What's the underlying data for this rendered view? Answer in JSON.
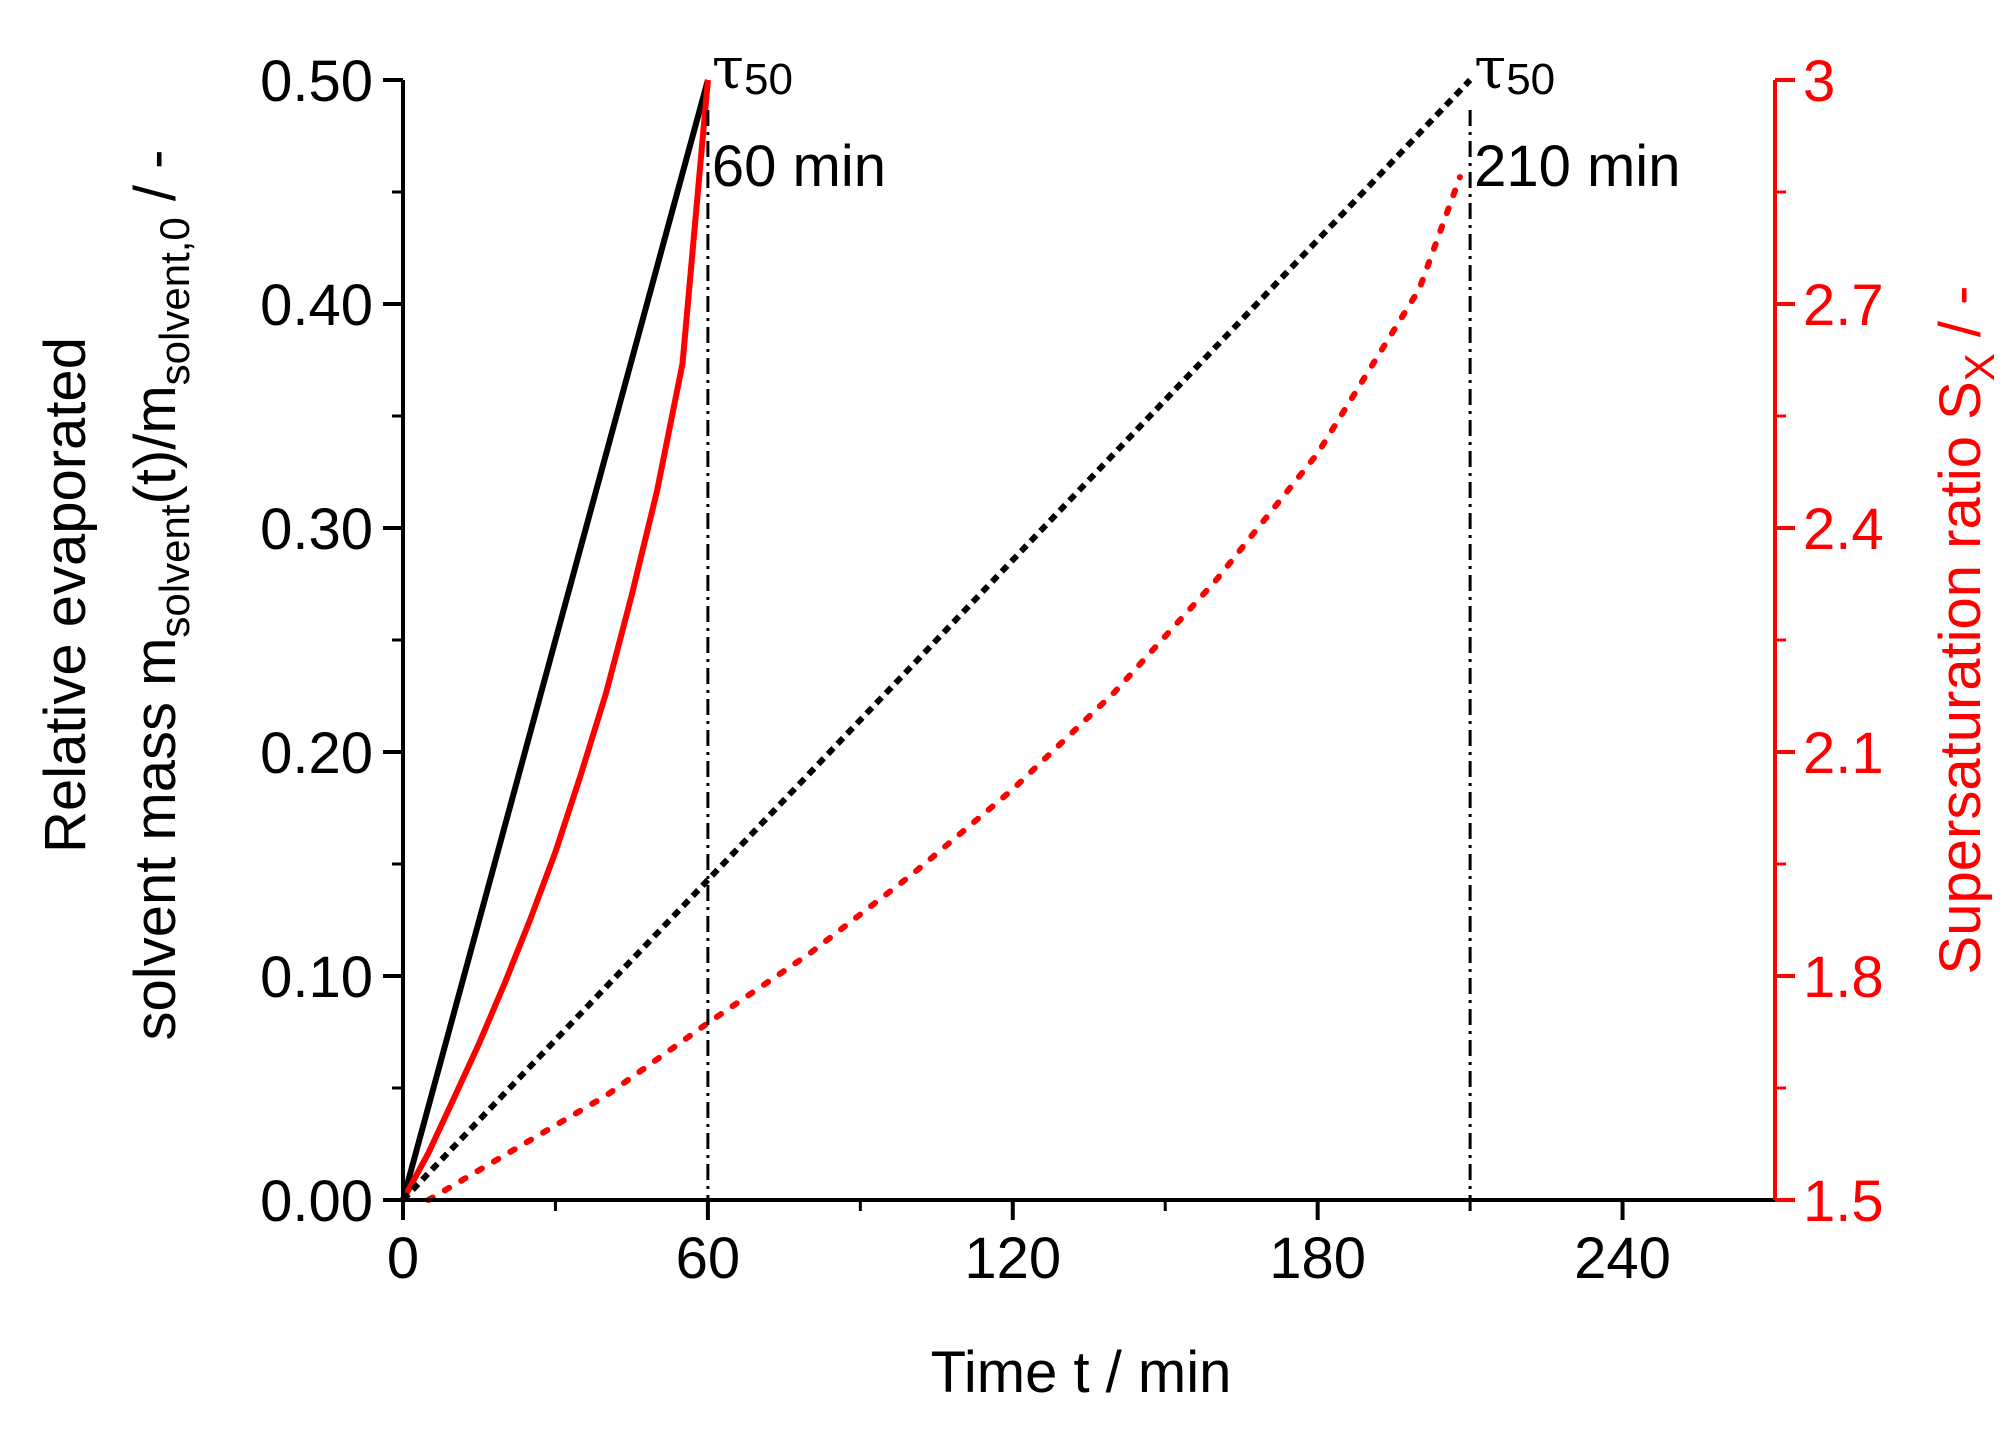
{
  "chart_data": {
    "type": "line",
    "xlabel": "Time  t / min",
    "ylabel_left": {
      "line1": "Relative evaporated",
      "line2_prefix": "solvent mass m",
      "line2_sub1": "solvent",
      "line2_mid": "(t)/m",
      "line2_sub2": "solvent,0",
      "line2_suffix": " / -"
    },
    "ylabel_right": {
      "prefix": "Supersaturation ratio S",
      "sub": "X",
      "suffix": " / -"
    },
    "x_range": [
      0,
      270
    ],
    "y_left_range": [
      0,
      0.5
    ],
    "y_right_range": [
      1.5,
      3.0
    ],
    "x_ticks": [
      "0",
      "60",
      "120",
      "180",
      "240"
    ],
    "x_tick_values": [
      0,
      60,
      120,
      180,
      240
    ],
    "y_left_ticks": [
      "0.00",
      "0.10",
      "0.20",
      "0.30",
      "0.40",
      "0.50"
    ],
    "y_left_tick_values": [
      0,
      0.1,
      0.2,
      0.3,
      0.4,
      0.5
    ],
    "y_right_ticks": [
      "1.5",
      "1.8",
      "2.1",
      "2.4",
      "2.7",
      "3"
    ],
    "y_right_tick_values": [
      1.5,
      1.8,
      2.1,
      2.4,
      2.7,
      3.0
    ],
    "colors": {
      "left_axis": "#000000",
      "right_axis": "#ff0000",
      "series_black": "#000000",
      "series_red": "#ff0000"
    },
    "series": [
      {
        "name": "evaporated mass, tau50 = 60 min",
        "axis": "left",
        "color": "#000000",
        "style": "solid",
        "x": [
          0,
          60
        ],
        "y": [
          0,
          0.5
        ]
      },
      {
        "name": "supersaturation, tau50 = 60 min",
        "axis": "right",
        "color": "#ff0000",
        "style": "solid",
        "x": [
          0,
          5,
          10,
          15,
          20,
          25,
          30,
          35,
          40,
          45,
          50,
          55,
          60
        ],
        "y": [
          1.5,
          1.563,
          1.636,
          1.71,
          1.79,
          1.875,
          1.966,
          2.07,
          2.18,
          2.31,
          2.45,
          2.62,
          3.0
        ]
      },
      {
        "name": "evaporated mass, tau50 = 210 min",
        "axis": "left",
        "color": "#000000",
        "style": "dotted",
        "x": [
          0,
          210
        ],
        "y": [
          0,
          0.5
        ]
      },
      {
        "name": "supersaturation, tau50 = 210 min",
        "axis": "right",
        "color": "#ff0000",
        "style": "dotted",
        "x": [
          5,
          20,
          40,
          60,
          80,
          100,
          120,
          140,
          160,
          180,
          200,
          208
        ],
        "y": [
          1.5,
          1.56,
          1.64,
          1.737,
          1.83,
          1.935,
          2.05,
          2.18,
          2.33,
          2.5,
          2.72,
          2.87
        ]
      }
    ],
    "vlines": [
      {
        "x": 60,
        "symbol": "τ",
        "sub": "50",
        "label": "60 min"
      },
      {
        "x": 210,
        "symbol": "τ",
        "sub": "50",
        "label": "210 min"
      }
    ]
  }
}
